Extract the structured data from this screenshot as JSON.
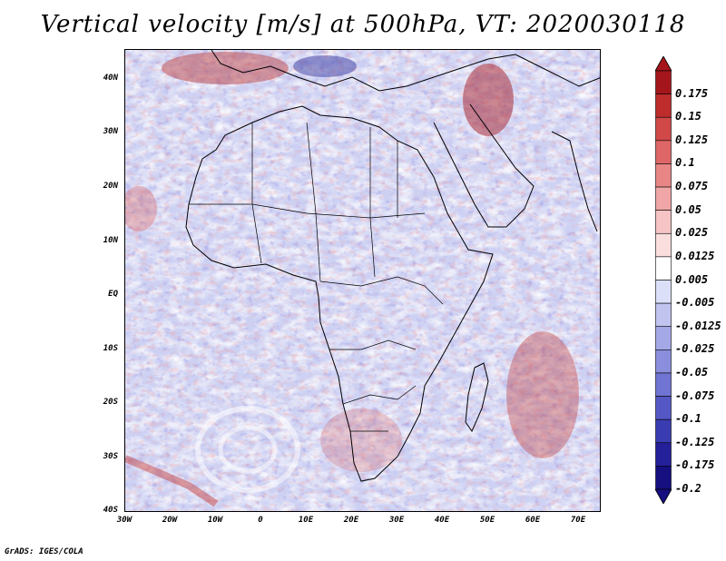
{
  "title": "Vertical velocity [m/s] at 500hPa, VT: 2020030118",
  "credit": "GrADS: IGES/COLA",
  "chart_data": {
    "type": "heatmap",
    "title": "Vertical velocity [m/s] at 500hPa, VT: 2020030118",
    "variable": "Vertical velocity",
    "units": "m/s",
    "level": "500hPa",
    "valid_time": "2020030118",
    "lon_range": [
      -30,
      75
    ],
    "lat_range": [
      -40,
      45
    ],
    "x_ticks": [
      "30W",
      "20W",
      "10W",
      "0",
      "10E",
      "20E",
      "30E",
      "40E",
      "50E",
      "60E",
      "70E"
    ],
    "y_ticks": [
      "40N",
      "30N",
      "20N",
      "10N",
      "EQ",
      "10S",
      "20S",
      "30S",
      "40S"
    ],
    "colorbar": {
      "labels": [
        "0.175",
        "0.15",
        "0.125",
        "0.1",
        "0.075",
        "0.05",
        "0.025",
        "0.0125",
        "0.005",
        "-0.005",
        "-0.0125",
        "-0.025",
        "-0.05",
        "-0.075",
        "-0.1",
        "-0.125",
        "-0.175",
        "-0.2"
      ],
      "colors": [
        "#a4161c",
        "#be2c2c",
        "#d04848",
        "#de6666",
        "#e88686",
        "#f0a6a6",
        "#f6c4c4",
        "#fadede",
        "#ffffff",
        "#dcdff8",
        "#c0c4ef",
        "#a4a8e6",
        "#8a8edc",
        "#7074d2",
        "#5558c4",
        "#3a3cb2",
        "#24209a",
        "#150f80"
      ]
    }
  }
}
